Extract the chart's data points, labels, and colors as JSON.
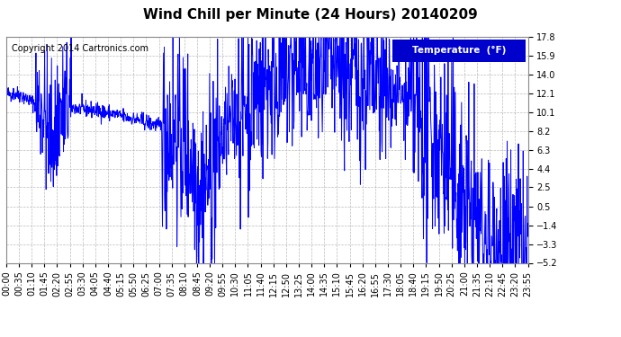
{
  "title": "Wind Chill per Minute (24 Hours) 20140209",
  "copyright": "Copyright 2014 Cartronics.com",
  "legend_label": "Temperature  (°F)",
  "line_color": "#0000FF",
  "background_color": "#FFFFFF",
  "plot_bg_color": "#FFFFFF",
  "grid_color": "#AAAAAA",
  "yticks": [
    17.8,
    15.9,
    14.0,
    12.1,
    10.1,
    8.2,
    6.3,
    4.4,
    2.5,
    0.5,
    -1.4,
    -3.3,
    -5.2
  ],
  "ymin": -5.2,
  "ymax": 17.8,
  "xtick_labels": [
    "00:00",
    "00:35",
    "01:10",
    "01:45",
    "02:20",
    "02:55",
    "03:30",
    "04:05",
    "04:40",
    "05:15",
    "05:50",
    "06:25",
    "07:00",
    "07:35",
    "08:10",
    "08:45",
    "09:20",
    "09:55",
    "10:30",
    "11:05",
    "11:40",
    "12:15",
    "12:50",
    "13:25",
    "14:00",
    "14:35",
    "15:10",
    "15:45",
    "16:20",
    "16:55",
    "17:30",
    "18:05",
    "18:40",
    "19:15",
    "19:50",
    "20:25",
    "21:00",
    "21:35",
    "22:10",
    "22:45",
    "23:20",
    "23:55"
  ],
  "title_fontsize": 11,
  "copyright_fontsize": 7,
  "tick_fontsize": 7,
  "legend_fontsize": 7.5
}
